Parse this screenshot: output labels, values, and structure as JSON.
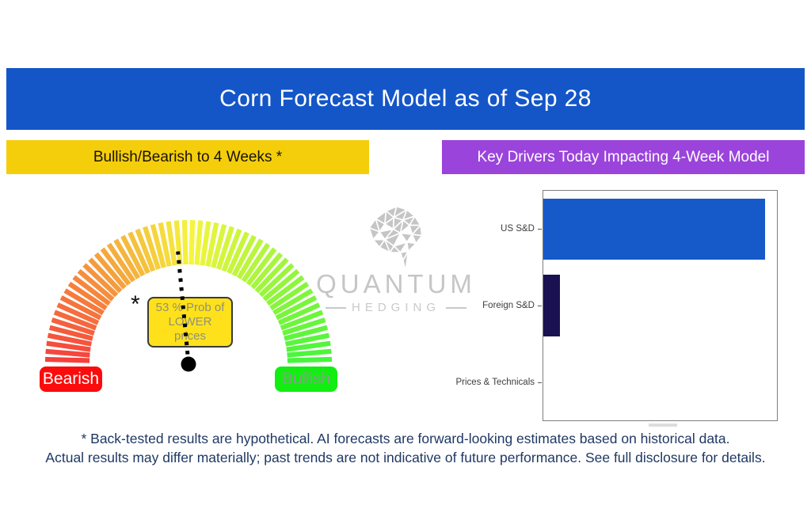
{
  "header": {
    "title": "Corn Forecast Model as of Sep 28",
    "bg_color": "#1456C8"
  },
  "banners": {
    "left": {
      "label": "Bullish/Bearish to 4 Weeks *",
      "bg_color": "#F5CE0B"
    },
    "right": {
      "label": "Key Drivers Today Impacting 4-Week Model",
      "bg_color": "#9B44DB"
    }
  },
  "watermark": {
    "name": "QUANTUM",
    "subname": "HEDGING",
    "color": "#c6c6c6"
  },
  "gauge": {
    "bearish_label": "Bearish",
    "bullish_label": "Bullish",
    "asterisk": "*",
    "callout_lines": [
      "53 % Prob of",
      "LOWER",
      "prices"
    ],
    "needle_pct_lower": 53,
    "colors": {
      "bearish_badge": "#FB0B0B",
      "bullish_badge": "#12EE12",
      "callout_bg": "#FFE11B",
      "arc_left": "#F24D4D",
      "arc_top": "#EEF257",
      "arc_right": "#42F048"
    }
  },
  "chart_data": [
    {
      "type": "gauge",
      "title": "Bullish/Bearish to 4 Weeks *",
      "min_label": "Bearish",
      "max_label": "Bullish",
      "value": 53,
      "value_meaning": "53 % Prob of LOWER prices",
      "scale": "red (Bearish, left) through yellow to green (Bullish, right), 180-degree arc"
    },
    {
      "type": "bar",
      "title": "Key Drivers Today Impacting 4-Week Model",
      "orientation": "horizontal",
      "categories": [
        "US S&D",
        "Foreign S&D",
        "Prices & Technicals"
      ],
      "values": [
        0.95,
        0.07,
        0
      ],
      "xlim": [
        0,
        1
      ],
      "bar_colors": [
        "#1659C8",
        "#1A1152",
        "#1A1152"
      ],
      "legend": false,
      "grid": false,
      "note_axis": "no visible numeric axis labels; values are fractions of axis width"
    }
  ],
  "disclaimer": {
    "line1": "* Back-tested results are hypothetical. AI forecasts are forward-looking estimates based on historical data.",
    "line2": "Actual results may differ materially; past trends are not indicative of future performance. See full disclosure for details."
  }
}
